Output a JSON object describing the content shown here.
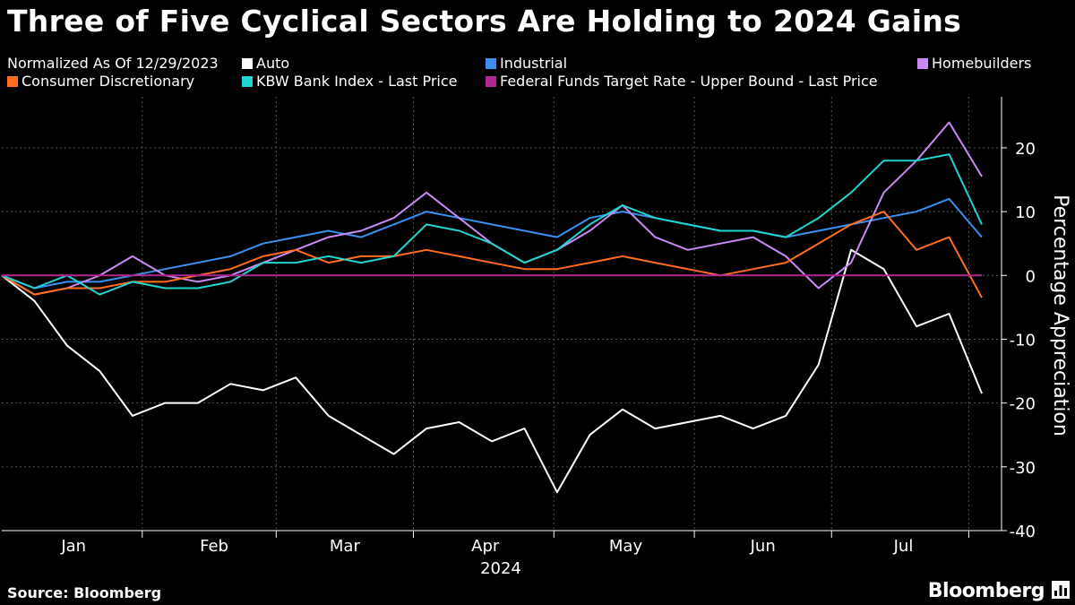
{
  "header": {
    "title": "Three of Five Cyclical Sectors Are Holding to 2024 Gains",
    "note": "Normalized As Of 12/29/2023"
  },
  "legend": [
    {
      "label": "Auto",
      "color": "#ffffff"
    },
    {
      "label": "Industrial",
      "color": "#3b8ff0"
    },
    {
      "label": "Homebuilders",
      "color": "#c98af5"
    },
    {
      "label": "Consumer Discretionary",
      "color": "#ff6d1f"
    },
    {
      "label": "KBW Bank Index - Last Price",
      "color": "#23d3d0"
    },
    {
      "label": "Federal Funds Target Rate - Upper Bound - Last Price",
      "color": "#b0288f"
    }
  ],
  "footer": {
    "source": "Source: Bloomberg",
    "brand": "Bloomberg"
  },
  "chart_data": {
    "type": "line",
    "title": "Three of Five Cyclical Sectors Are Holding to 2024 Gains",
    "ylabel": "Percentage Appreciation",
    "xlabel": "2024",
    "ylim": [
      -40,
      28
    ],
    "yticks": [
      -40,
      -30,
      -20,
      -10,
      0,
      10,
      20
    ],
    "x_unit": "week index (0 = 12/29/2023)",
    "xlim": [
      0,
      30
    ],
    "months": [
      {
        "label": "Jan",
        "pos": 2.2
      },
      {
        "label": "Feb",
        "pos": 6.5
      },
      {
        "label": "Mar",
        "pos": 10.5
      },
      {
        "label": "Apr",
        "pos": 14.8
      },
      {
        "label": "May",
        "pos": 19.1
      },
      {
        "label": "Jun",
        "pos": 23.3
      },
      {
        "label": "Jul",
        "pos": 27.6
      }
    ],
    "month_boundaries": [
      4.3,
      8.4,
      12.6,
      16.9,
      21.2,
      25.4,
      29.6
    ],
    "year_label": "2024",
    "x": [
      0,
      1,
      2,
      3,
      4,
      5,
      6,
      7,
      8,
      9,
      10,
      11,
      12,
      13,
      14,
      15,
      16,
      17,
      18,
      19,
      20,
      21,
      22,
      23,
      24,
      25,
      26,
      27,
      28,
      29,
      30
    ],
    "series": [
      {
        "name": "Auto",
        "color": "#ffffff",
        "values": [
          0,
          -4,
          -11,
          -15,
          -22,
          -20,
          -20,
          -17,
          -18,
          -16,
          -22,
          -25,
          -28,
          -24,
          -23,
          -26,
          -24,
          -34,
          -25,
          -21,
          -24,
          -23,
          -22,
          -24,
          -22,
          -14,
          4,
          1,
          -8,
          -6,
          -18.5
        ]
      },
      {
        "name": "Industrial",
        "color": "#3b8ff0",
        "values": [
          0,
          -2,
          -1,
          -1,
          0,
          1,
          2,
          3,
          5,
          6,
          7,
          6,
          8,
          10,
          9,
          8,
          7,
          6,
          9,
          10,
          9,
          8,
          7,
          7,
          6,
          7,
          8,
          9,
          10,
          12,
          6
        ]
      },
      {
        "name": "Homebuilders",
        "color": "#c98af5",
        "values": [
          0,
          -3,
          -2,
          0,
          3,
          0,
          -1,
          0,
          2,
          4,
          6,
          7,
          9,
          13,
          9,
          5,
          2,
          4,
          7,
          11,
          6,
          4,
          5,
          6,
          3,
          -2,
          2,
          13,
          18,
          24,
          15.5
        ]
      },
      {
        "name": "Consumer Discretionary",
        "color": "#ff6d1f",
        "values": [
          0,
          -3,
          -2,
          -2,
          -1,
          -1,
          0,
          1,
          3,
          4,
          2,
          3,
          3,
          4,
          3,
          2,
          1,
          1,
          2,
          3,
          2,
          1,
          0,
          1,
          2,
          5,
          8,
          10,
          4,
          6,
          -3.5
        ]
      },
      {
        "name": "KBW Bank Index - Last Price",
        "color": "#23d3d0",
        "values": [
          0,
          -2,
          0,
          -3,
          -1,
          -2,
          -2,
          -1,
          2,
          2,
          3,
          2,
          3,
          8,
          7,
          5,
          2,
          4,
          8,
          11,
          9,
          8,
          7,
          7,
          6,
          9,
          13,
          18,
          18,
          19,
          8
        ]
      },
      {
        "name": "Federal Funds Target Rate - Upper Bound - Last Price",
        "color": "#b0288f",
        "values": [
          0,
          0,
          0,
          0,
          0,
          0,
          0,
          0,
          0,
          0,
          0,
          0,
          0,
          0,
          0,
          0,
          0,
          0,
          0,
          0,
          0,
          0,
          0,
          0,
          0,
          0,
          0,
          0,
          0,
          0,
          0
        ]
      }
    ]
  }
}
